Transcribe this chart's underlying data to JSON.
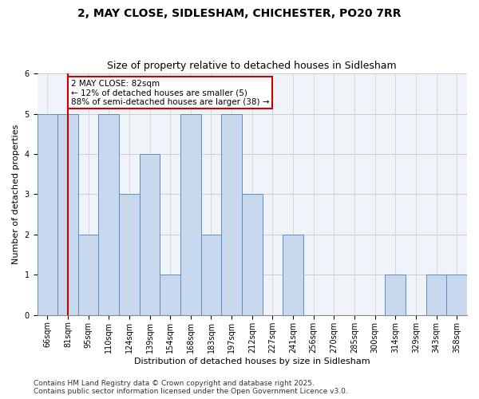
{
  "title1": "2, MAY CLOSE, SIDLESHAM, CHICHESTER, PO20 7RR",
  "title2": "Size of property relative to detached houses in Sidlesham",
  "xlabel": "Distribution of detached houses by size in Sidlesham",
  "ylabel": "Number of detached properties",
  "footnote1": "Contains HM Land Registry data © Crown copyright and database right 2025.",
  "footnote2": "Contains public sector information licensed under the Open Government Licence v3.0.",
  "annotation_title": "2 MAY CLOSE: 82sqm",
  "annotation_line1": "← 12% of detached houses are smaller (5)",
  "annotation_line2": "88% of semi-detached houses are larger (38) →",
  "subject_bin": "81sqm",
  "bins": [
    "66sqm",
    "81sqm",
    "95sqm",
    "110sqm",
    "124sqm",
    "139sqm",
    "154sqm",
    "168sqm",
    "183sqm",
    "197sqm",
    "212sqm",
    "227sqm",
    "241sqm",
    "256sqm",
    "270sqm",
    "285sqm",
    "300sqm",
    "314sqm",
    "329sqm",
    "343sqm",
    "358sqm"
  ],
  "values": [
    5,
    5,
    2,
    5,
    3,
    4,
    1,
    5,
    2,
    5,
    3,
    0,
    2,
    0,
    0,
    0,
    0,
    1,
    0,
    1,
    1
  ],
  "bar_color": "#c9d9ed",
  "bar_edge_color": "#5b8dc8",
  "subject_line_color": "#cc0000",
  "annotation_box_edge": "#cc0000",
  "annotation_box_face": "#ffffff",
  "bg_color": "#f0f4fa",
  "ylim": [
    0,
    6
  ],
  "yticks": [
    0,
    1,
    2,
    3,
    4,
    5,
    6
  ],
  "grid_color": "#cccccc",
  "title_fontsize": 10,
  "subtitle_fontsize": 9,
  "axis_label_fontsize": 8,
  "tick_fontsize": 7,
  "annotation_fontsize": 7.5,
  "footnote_fontsize": 6.5
}
